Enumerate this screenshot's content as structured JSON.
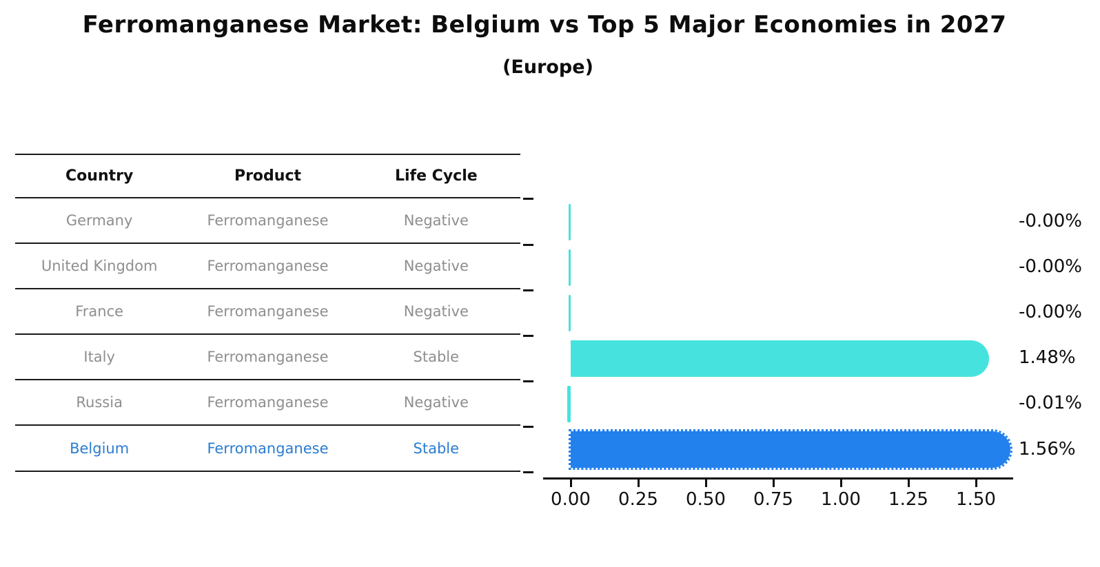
{
  "title": "Ferromanganese Market: Belgium vs Top 5 Major Economies in 2027",
  "subtitle": "(Europe)",
  "table": {
    "headers": [
      "Country",
      "Product",
      "Life Cycle"
    ],
    "rows": [
      {
        "country": "Germany",
        "product": "Ferromanganese",
        "life_cycle": "Negative",
        "highlight": false
      },
      {
        "country": "United Kingdom",
        "product": "Ferromanganese",
        "life_cycle": "Negative",
        "highlight": false
      },
      {
        "country": "France",
        "product": "Ferromanganese",
        "life_cycle": "Negative",
        "highlight": false
      },
      {
        "country": "Italy",
        "product": "Ferromanganese",
        "life_cycle": "Stable",
        "highlight": false
      },
      {
        "country": "Russia",
        "product": "Ferromanganese",
        "life_cycle": "Negative",
        "highlight": false
      },
      {
        "country": "Belgium",
        "product": "Ferromanganese",
        "life_cycle": "Stable",
        "highlight": true
      }
    ]
  },
  "chart_data": {
    "type": "bar",
    "orientation": "horizontal",
    "title": "Ferromanganese Market: Belgium vs Top 5 Major Economies in 2027 (Europe)",
    "categories": [
      "Germany",
      "United Kingdom",
      "France",
      "Italy",
      "Russia",
      "Belgium"
    ],
    "values": [
      -0.0,
      -0.0,
      -0.0,
      1.48,
      -0.01,
      1.56
    ],
    "value_labels": [
      "-0.00%",
      "-0.00%",
      "-0.00%",
      "1.48%",
      "-0.01%",
      "1.56%"
    ],
    "x_ticks": [
      "0.00",
      "0.25",
      "0.50",
      "0.75",
      "1.00",
      "1.25",
      "1.50"
    ],
    "x_tick_values": [
      0.0,
      0.25,
      0.5,
      0.75,
      1.0,
      1.25,
      1.5
    ],
    "xlim": [
      -0.1,
      1.63
    ],
    "grid": false,
    "legend": false,
    "highlight_index": 5,
    "colors": {
      "default_bar": "#46e3de",
      "highlight_bar": "#2281ed",
      "highlight_text": "#2a7cd0",
      "table_text": "#8e8e8e",
      "axis": "#0d0d0d"
    }
  }
}
